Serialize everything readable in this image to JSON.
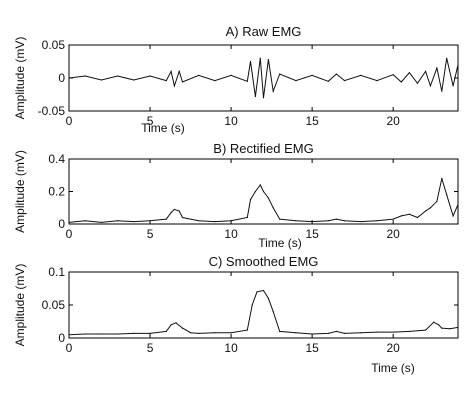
{
  "chart_data": [
    {
      "type": "line",
      "title": "A) Raw EMG",
      "xlabel": "Time (s)",
      "ylabel": "Amplitude (mV)",
      "xlim": [
        0,
        24
      ],
      "ylim": [
        -0.05,
        0.05
      ],
      "xticks": [
        "0",
        "5",
        "10",
        "15",
        "20"
      ],
      "yticks": [
        "0.05",
        "0",
        "-0.05"
      ],
      "series": [
        {
          "x": [
            0,
            1,
            2,
            3,
            4,
            5,
            6,
            6.3,
            6.5,
            6.8,
            7,
            8,
            9,
            10,
            11,
            11.2,
            11.5,
            11.8,
            12,
            12.3,
            12.6,
            13,
            14,
            15,
            16,
            16.5,
            17,
            18,
            19,
            20,
            20.5,
            21,
            21.5,
            22,
            22.3,
            22.7,
            23,
            23.3,
            23.7,
            24
          ],
          "values": [
            0,
            0.003,
            -0.003,
            0.003,
            -0.003,
            0.003,
            -0.004,
            0.01,
            -0.012,
            0.01,
            -0.006,
            0.004,
            -0.004,
            0.004,
            -0.005,
            0.025,
            -0.028,
            0.03,
            -0.03,
            0.028,
            -0.02,
            0.006,
            -0.004,
            0.004,
            -0.005,
            0.006,
            -0.004,
            0.004,
            -0.004,
            0.005,
            -0.006,
            0.008,
            -0.008,
            0.01,
            -0.012,
            0.015,
            -0.02,
            0.03,
            -0.012,
            0.02
          ]
        }
      ]
    },
    {
      "type": "line",
      "title": "B) Rectified EMG",
      "xlabel": "Time (s)",
      "ylabel": "Amplitude (mV)",
      "xlim": [
        0,
        24
      ],
      "ylim": [
        0,
        0.4
      ],
      "xticks": [
        "0",
        "5",
        "10",
        "15",
        "20"
      ],
      "yticks": [
        "0.4",
        "0.2",
        "0"
      ],
      "series": [
        {
          "x": [
            0,
            1,
            2,
            3,
            4,
            5,
            6,
            6.3,
            6.5,
            6.8,
            7,
            8,
            9,
            10,
            11,
            11.2,
            11.5,
            11.8,
            12,
            12.3,
            12.6,
            13,
            14,
            15,
            16,
            16.5,
            17,
            18,
            19,
            20,
            20.5,
            21,
            21.5,
            22,
            22.3,
            22.7,
            23,
            23.3,
            23.7,
            24
          ],
          "values": [
            0.01,
            0.02,
            0.01,
            0.02,
            0.015,
            0.02,
            0.03,
            0.07,
            0.09,
            0.08,
            0.04,
            0.02,
            0.015,
            0.02,
            0.04,
            0.15,
            0.2,
            0.24,
            0.2,
            0.16,
            0.1,
            0.03,
            0.02,
            0.015,
            0.02,
            0.03,
            0.02,
            0.015,
            0.02,
            0.03,
            0.05,
            0.06,
            0.04,
            0.08,
            0.1,
            0.14,
            0.28,
            0.18,
            0.05,
            0.12
          ]
        }
      ]
    },
    {
      "type": "line",
      "title": "C) Smoothed EMG",
      "xlabel": "Time (s)",
      "ylabel": "Amplitude (mV)",
      "xlim": [
        0,
        24
      ],
      "ylim": [
        0,
        0.1
      ],
      "xticks": [
        "0",
        "5",
        "10",
        "15",
        "20"
      ],
      "yticks": [
        "0.1",
        "0.05",
        "0"
      ],
      "series": [
        {
          "x": [
            0,
            1,
            2,
            3,
            4,
            5,
            6,
            6.3,
            6.6,
            7,
            7.5,
            8,
            9,
            10,
            11,
            11.3,
            11.6,
            12,
            12.3,
            12.6,
            13,
            14,
            15,
            16,
            16.5,
            17,
            18,
            19,
            20,
            21,
            22,
            22.5,
            22.8,
            23,
            23.5,
            24
          ],
          "values": [
            0.005,
            0.006,
            0.006,
            0.006,
            0.007,
            0.007,
            0.01,
            0.02,
            0.023,
            0.015,
            0.008,
            0.007,
            0.008,
            0.008,
            0.012,
            0.05,
            0.07,
            0.072,
            0.06,
            0.04,
            0.01,
            0.008,
            0.006,
            0.007,
            0.01,
            0.007,
            0.008,
            0.009,
            0.009,
            0.01,
            0.012,
            0.024,
            0.02,
            0.015,
            0.014,
            0.016
          ]
        }
      ]
    }
  ]
}
